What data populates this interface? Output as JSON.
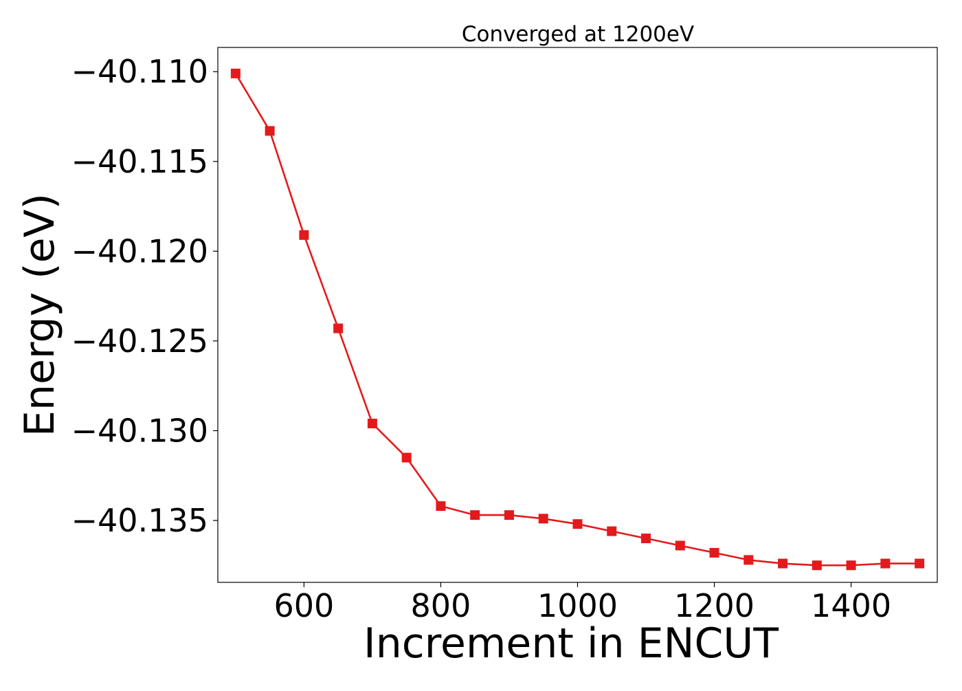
{
  "chart_data": {
    "type": "line",
    "title": "Converged at 1200eV",
    "xlabel": "Increment in ENCUT",
    "ylabel": "Energy (eV)",
    "xlim": [
      474,
      1526
    ],
    "ylim": [
      -40.13845,
      -40.10865
    ],
    "x_ticks": [
      600,
      800,
      1000,
      1200,
      1400
    ],
    "x_tick_labels": [
      "600",
      "800",
      "1000",
      "1200",
      "1400"
    ],
    "y_ticks": [
      -40.11,
      -40.115,
      -40.12,
      -40.125,
      -40.13,
      -40.135
    ],
    "y_tick_labels": [
      "−40.110",
      "−40.115",
      "−40.120",
      "−40.125",
      "−40.130",
      "−40.135"
    ],
    "grid": false,
    "marker": "square",
    "color": "#e31a1c",
    "series": [
      {
        "x": [
          500,
          550,
          600,
          650,
          700,
          750,
          800,
          850,
          900,
          950,
          1000,
          1050,
          1100,
          1150,
          1200,
          1250,
          1300,
          1350,
          1400,
          1450,
          1500
        ],
        "values": [
          -40.1101,
          -40.1133,
          -40.1191,
          -40.1243,
          -40.1296,
          -40.1315,
          -40.1342,
          -40.1347,
          -40.1347,
          -40.1349,
          -40.1352,
          -40.1356,
          -40.136,
          -40.1364,
          -40.1368,
          -40.1372,
          -40.1374,
          -40.1375,
          -40.1375,
          -40.1374,
          -40.1374
        ]
      }
    ]
  }
}
